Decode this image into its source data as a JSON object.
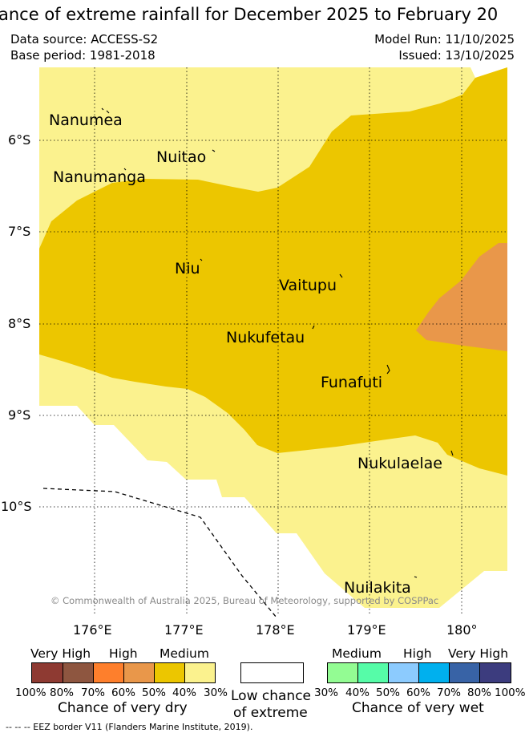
{
  "title": "ance of extreme rainfall for December 2025 to February 20",
  "meta": {
    "data_source": "Data source: ACCESS-S2",
    "base_period": "Base period: 1981-2018",
    "model_run": "Model Run: 11/10/2025",
    "issued": "Issued: 13/10/2025"
  },
  "map": {
    "y_ticks": [
      "6°S",
      "7°S",
      "8°S",
      "9°S",
      "10°S"
    ],
    "x_ticks": [
      "176°E",
      "177°E",
      "178°E",
      "179°E",
      "180°"
    ],
    "places": [
      {
        "key": "nanumea",
        "name": "Nanumea"
      },
      {
        "key": "nuitao",
        "name": "Nuitao"
      },
      {
        "key": "nanumanga",
        "name": "Nanumanga"
      },
      {
        "key": "niu",
        "name": "Niu"
      },
      {
        "key": "vaitupu",
        "name": "Vaitupu"
      },
      {
        "key": "nukufetau",
        "name": "Nukufetau"
      },
      {
        "key": "funafuti",
        "name": "Funafuti"
      },
      {
        "key": "nukulaelae",
        "name": "Nukulaelae"
      },
      {
        "key": "nuilakita",
        "name": "Nuilakita"
      }
    ],
    "copyright": "© Commonwealth of Australia 2025, Bureau of Meteorology, supported by COSPPac",
    "zone_colors": {
      "medium_dry": "#ecc600",
      "low_medium_dry": "#fbf28e",
      "high_dry": "#e9974a",
      "background": "#ffffff"
    }
  },
  "legend": {
    "dry": {
      "categories": [
        "Very High",
        "High",
        "Medium"
      ],
      "percents": [
        "100%",
        "80%",
        "70%",
        "60%",
        "50%",
        "40%",
        "30%"
      ],
      "colors": [
        "#8e3a32",
        "#8e5640",
        "#fe7f2c",
        "#e9974a",
        "#ecc600",
        "#fbf28e"
      ],
      "title": "Chance of very dry"
    },
    "low": {
      "line1": "Low chance",
      "line2": "of extreme"
    },
    "wet": {
      "categories": [
        "Medium",
        "High",
        "Very High"
      ],
      "percents": [
        "30%",
        "40%",
        "50%",
        "60%",
        "70%",
        "80%",
        "100%"
      ],
      "colors": [
        "#93fc93",
        "#56fca8",
        "#8ccbfe",
        "#00b0ee",
        "#3863a6",
        "#3c3c7e"
      ],
      "title": "Chance of very wet"
    },
    "eez_note": "-- -- -- EEZ border V11 (Flanders Marine Institute, 2019)."
  }
}
